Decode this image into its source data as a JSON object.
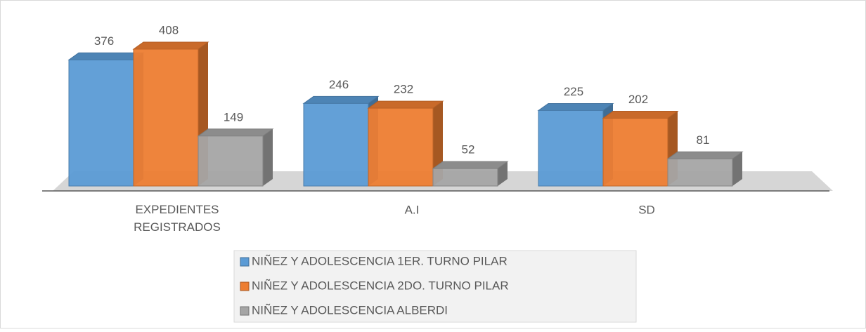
{
  "chart_data": {
    "type": "bar3d",
    "categories": [
      "EXPEDIENTES REGISTRADOS",
      "A.I",
      "SD"
    ],
    "series": [
      {
        "name": "NIÑEZ Y ADOLESCENCIA 1ER. TURNO PILAR",
        "color": "#5b9bd5",
        "values": [
          376,
          246,
          225
        ]
      },
      {
        "name": "NIÑEZ Y ADOLESCENCIA 2DO. TURNO PILAR",
        "color": "#ed7d31",
        "values": [
          408,
          232,
          202
        ]
      },
      {
        "name": "NIÑEZ Y ADOLESCENCIA ALBERDI",
        "color": "#a5a5a5",
        "values": [
          149,
          52,
          81
        ]
      }
    ],
    "legend": "bottom"
  }
}
